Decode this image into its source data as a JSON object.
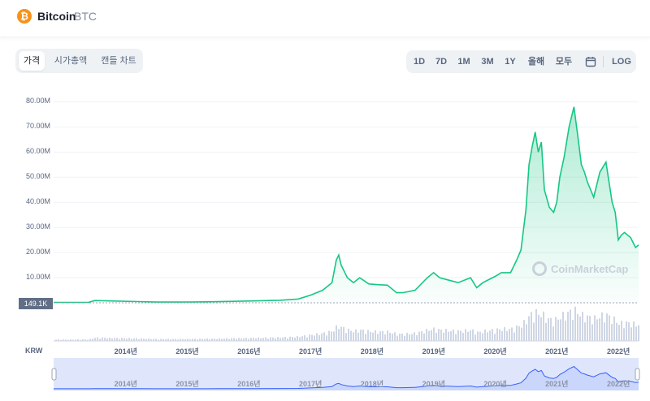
{
  "header": {
    "coin_name": "Bitcoin",
    "coin_symbol": "BTC",
    "logo_glyph": "₿",
    "logo_color": "#f7931a"
  },
  "view_tabs": [
    {
      "label": "가격",
      "active": true
    },
    {
      "label": "시가총액",
      "active": false
    },
    {
      "label": "캔들 차트",
      "active": false
    }
  ],
  "range_buttons": [
    "1D",
    "7D",
    "1M",
    "3M",
    "1Y",
    "올해",
    "모두"
  ],
  "calendar_icon": "calendar-icon",
  "log_label": "LOG",
  "current_price_label": "149.1K",
  "currency_label": "KRW",
  "watermark": "CoinMarketCap",
  "colors": {
    "line": "#16c784",
    "area_top": "#16c784",
    "navigator": "#3861fb"
  },
  "chart_data": {
    "type": "area",
    "title": "",
    "xlabel": "",
    "ylabel": "",
    "y_tick_labels": [
      "10.00M",
      "20.00M",
      "30.00M",
      "40.00M",
      "50.00M",
      "60.00M",
      "70.00M",
      "80.00M"
    ],
    "y_ticks": [
      10000000,
      20000000,
      30000000,
      40000000,
      50000000,
      60000000,
      70000000,
      80000000
    ],
    "ylim": [
      0,
      85000000
    ],
    "x_tick_labels": [
      "2014년",
      "2015년",
      "2016년",
      "2017년",
      "2018년",
      "2019년",
      "2020년",
      "2021년",
      "2022년"
    ],
    "x_ticks": [
      2014.0,
      2015.0,
      2016.0,
      2017.0,
      2018.0,
      2019.0,
      2020.0,
      2021.0,
      2022.0
    ],
    "xlim": [
      2013.33,
      2022.83
    ],
    "grid": true,
    "series": [
      {
        "x": [
          2013.33,
          2013.6,
          2013.9,
          2014.0,
          2014.3,
          2014.7,
          2015.0,
          2015.5,
          2016.0,
          2016.5,
          2017.0,
          2017.3,
          2017.5,
          2017.7,
          2017.85,
          2017.92,
          2017.96,
          2018.0,
          2018.1,
          2018.2,
          2018.3,
          2018.45,
          2018.6,
          2018.75,
          2018.9,
          2019.0,
          2019.2,
          2019.4,
          2019.5,
          2019.6,
          2019.75,
          2019.9,
          2020.1,
          2020.2,
          2020.3,
          2020.5,
          2020.6,
          2020.75,
          2020.85,
          2020.92,
          2021.0,
          2021.05,
          2021.1,
          2021.15,
          2021.2,
          2021.25,
          2021.3,
          2021.38,
          2021.45,
          2021.5,
          2021.55,
          2021.62,
          2021.7,
          2021.78,
          2021.85,
          2021.9,
          2021.95,
          2022.0,
          2022.1,
          2022.2,
          2022.3,
          2022.4,
          2022.45,
          2022.5,
          2022.55,
          2022.6,
          2022.7,
          2022.78,
          2022.83
        ],
        "values": [
          150000,
          150000,
          200000,
          900000,
          700000,
          500000,
          300000,
          300000,
          450000,
          700000,
          1000000,
          1500000,
          3000000,
          5000000,
          8000000,
          17000000,
          19000000,
          15000000,
          10000000,
          8000000,
          10000000,
          7500000,
          7200000,
          7000000,
          4000000,
          4000000,
          5000000,
          10000000,
          12000000,
          10000000,
          9000000,
          8000000,
          10000000,
          6000000,
          8000000,
          10500000,
          12000000,
          12000000,
          17000000,
          21000000,
          37000000,
          55000000,
          62000000,
          68000000,
          60000000,
          64000000,
          45000000,
          38000000,
          36000000,
          40000000,
          50000000,
          58000000,
          70000000,
          78000000,
          65000000,
          55000000,
          52000000,
          48000000,
          42000000,
          52000000,
          56000000,
          40000000,
          36000000,
          25000000,
          27000000,
          28000000,
          26000000,
          22000000,
          23000000
        ]
      }
    ]
  }
}
